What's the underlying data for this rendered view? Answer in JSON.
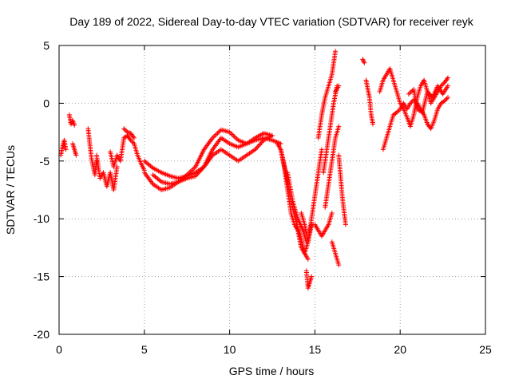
{
  "chart_data": {
    "type": "scatter",
    "title": "Day 189 of 2022, Sidereal Day-to-day VTEC variation (SDTVAR) for receiver reyk",
    "xlabel": "GPS time / hours",
    "ylabel": "SDTVAR / TECUs",
    "xlim": [
      0,
      25
    ],
    "ylim": [
      -20,
      5
    ],
    "xticks": [
      0,
      5,
      10,
      15,
      20,
      25
    ],
    "yticks": [
      5,
      0,
      -5,
      -10,
      -15,
      -20
    ],
    "grid": true,
    "marker": "+",
    "color": "#ff0000",
    "series": [
      {
        "name": "SDTVAR",
        "traces": [
          {
            "x": [
              0.1,
              0.2,
              0.3,
              0.4
            ],
            "y": [
              -4.5,
              -3.8,
              -3.2,
              -4.0
            ]
          },
          {
            "x": [
              0.6,
              0.7,
              0.8,
              0.9
            ],
            "y": [
              -1.0,
              -1.8,
              -1.5,
              -1.9
            ]
          },
          {
            "x": [
              0.8,
              0.9,
              1.0
            ],
            "y": [
              -3.5,
              -4.0,
              -4.5
            ]
          },
          {
            "x": [
              1.7,
              1.8,
              1.9,
              2.0,
              2.1,
              2.2
            ],
            "y": [
              -2.2,
              -3.5,
              -4.8,
              -5.5,
              -6.2,
              -5.0
            ]
          },
          {
            "x": [
              2.2,
              2.4,
              2.6,
              2.8,
              3.0,
              3.2,
              3.4
            ],
            "y": [
              -4.5,
              -6.5,
              -6.0,
              -7.2,
              -6.0,
              -7.5,
              -5.5
            ]
          },
          {
            "x": [
              3.0,
              3.2,
              3.4,
              3.6,
              3.8,
              4.0,
              4.2,
              4.4,
              4.6,
              4.8,
              5.0
            ],
            "y": [
              -4.2,
              -5.5,
              -4.5,
              -5.0,
              -3.0,
              -2.8,
              -3.2,
              -3.5,
              -4.5,
              -5.2,
              -5.8
            ]
          },
          {
            "x": [
              3.8,
              4.0,
              4.2,
              4.4
            ],
            "y": [
              -2.2,
              -2.5,
              -2.6,
              -3.0
            ]
          },
          {
            "x": [
              5.0,
              5.5,
              6.0,
              6.5,
              7.0,
              7.5,
              8.0,
              8.5,
              9.0,
              9.5,
              10.0,
              10.5,
              11.0,
              11.5,
              12.0,
              12.5,
              13.0
            ],
            "y": [
              -6.0,
              -7.0,
              -7.5,
              -7.3,
              -6.8,
              -6.5,
              -6.3,
              -5.5,
              -4.0,
              -3.0,
              -3.5,
              -3.8,
              -3.5,
              -3.2,
              -3.0,
              -3.2,
              -3.5
            ]
          },
          {
            "x": [
              5.0,
              5.5,
              6.0,
              6.5,
              7.0,
              7.5,
              8.0,
              8.5,
              9.0,
              9.5,
              10.0,
              10.5,
              11.0,
              11.5,
              12.0,
              12.5
            ],
            "y": [
              -5.0,
              -5.6,
              -6.0,
              -6.3,
              -6.5,
              -6.3,
              -6.0,
              -5.5,
              -4.5,
              -4.0,
              -4.5,
              -5.0,
              -4.5,
              -4.0,
              -3.2,
              -2.8
            ]
          },
          {
            "x": [
              5.5,
              6.0,
              6.5,
              7.0,
              7.5,
              8.0,
              8.5,
              9.0,
              9.5,
              10.0,
              10.5,
              11.0,
              11.5,
              12.0,
              12.5
            ],
            "y": [
              -6.2,
              -6.8,
              -7.0,
              -6.8,
              -6.2,
              -5.5,
              -4.0,
              -3.0,
              -2.3,
              -2.5,
              -3.2,
              -3.5,
              -3.0,
              -2.6,
              -2.8
            ]
          },
          {
            "x": [
              12.8,
              13.0,
              13.2,
              13.4,
              13.6,
              13.8,
              14.0,
              14.2,
              14.4,
              14.6,
              14.8,
              15.0,
              15.2,
              15.4,
              15.6,
              15.8,
              16.0
            ],
            "y": [
              -3.5,
              -4.0,
              -5.5,
              -7.5,
              -9.5,
              -10.5,
              -11.0,
              -12.5,
              -13.0,
              -12.0,
              -10.5,
              -10.5,
              -11.0,
              -11.5,
              -11.0,
              -10.5,
              -9.5
            ]
          },
          {
            "x": [
              13.0,
              13.3,
              13.6,
              14.0,
              14.2,
              14.4,
              14.6
            ],
            "y": [
              -4.0,
              -6.0,
              -8.5,
              -10.8,
              -11.8,
              -13.0,
              -13.5
            ]
          },
          {
            "x": [
              13.4,
              13.7,
              14.0,
              14.3,
              14.5
            ],
            "y": [
              -6.0,
              -8.5,
              -10.0,
              -11.0,
              -12.0
            ]
          },
          {
            "x": [
              14.5,
              14.6,
              14.7,
              14.8
            ],
            "y": [
              -14.5,
              -16.0,
              -15.5,
              -15.0
            ]
          },
          {
            "x": [
              14.2,
              14.4,
              14.6,
              14.8,
              15.0,
              15.2,
              15.4
            ],
            "y": [
              -9.5,
              -10.5,
              -12.0,
              -10.0,
              -8.0,
              -6.0,
              -4.0
            ]
          },
          {
            "x": [
              15.2,
              15.4,
              15.6,
              15.8,
              16.0,
              16.2
            ],
            "y": [
              -3.0,
              -1.0,
              0.5,
              1.5,
              2.5,
              4.5
            ]
          },
          {
            "x": [
              15.5,
              15.7,
              15.9,
              16.1,
              16.3
            ],
            "y": [
              -6.0,
              -4.0,
              -2.0,
              0.0,
              1.5
            ]
          },
          {
            "x": [
              15.6,
              15.8,
              16.0,
              16.2,
              16.4
            ],
            "y": [
              -9.0,
              -7.0,
              -5.0,
              -3.0,
              -2.0
            ]
          },
          {
            "x": [
              16.0,
              16.2,
              16.4
            ],
            "y": [
              -12.0,
              -13.0,
              -14.0
            ]
          },
          {
            "x": [
              16.4,
              16.6,
              16.8
            ],
            "y": [
              -4.5,
              -8.0,
              -10.5
            ]
          },
          {
            "x": [
              16.2,
              16.4
            ],
            "y": [
              1.0,
              1.5
            ]
          },
          {
            "x": [
              17.8,
              17.9
            ],
            "y": [
              3.8,
              3.5
            ]
          },
          {
            "x": [
              18.0,
              18.2,
              18.3,
              18.4
            ],
            "y": [
              2.0,
              0.5,
              -1.0,
              -1.8
            ]
          },
          {
            "x": [
              18.8,
              19.0,
              19.2,
              19.4,
              19.6,
              19.8,
              20.0,
              20.2,
              20.4,
              20.6,
              20.8,
              21.0,
              21.2,
              21.4,
              21.6,
              21.8,
              22.0,
              22.2,
              22.4,
              22.6,
              22.8
            ],
            "y": [
              1.0,
              2.0,
              2.5,
              3.0,
              2.0,
              1.0,
              0.0,
              -0.5,
              -1.2,
              -2.0,
              -1.0,
              0.5,
              1.5,
              2.0,
              1.0,
              0.0,
              0.5,
              1.0,
              1.5,
              1.8,
              2.2
            ]
          },
          {
            "x": [
              19.0,
              19.2,
              19.4,
              19.6,
              19.8,
              20.0,
              20.2,
              20.4,
              20.6,
              20.8,
              21.0,
              21.2,
              21.4,
              21.6,
              21.8,
              22.0,
              22.2,
              22.4,
              22.6,
              22.8
            ],
            "y": [
              -4.0,
              -3.0,
              -2.0,
              -1.0,
              -0.8,
              -0.5,
              0.0,
              -0.5,
              0.0,
              0.3,
              0.0,
              -0.5,
              -1.0,
              -1.8,
              -2.2,
              -1.5,
              -0.5,
              0.0,
              0.2,
              0.5
            ]
          },
          {
            "x": [
              20.5,
              20.8,
              21.0,
              21.3,
              21.6,
              21.9,
              22.2,
              22.5,
              22.8
            ],
            "y": [
              0.8,
              1.2,
              -0.5,
              -0.8,
              1.0,
              0.5,
              1.5,
              0.8,
              1.5
            ]
          }
        ]
      }
    ]
  }
}
